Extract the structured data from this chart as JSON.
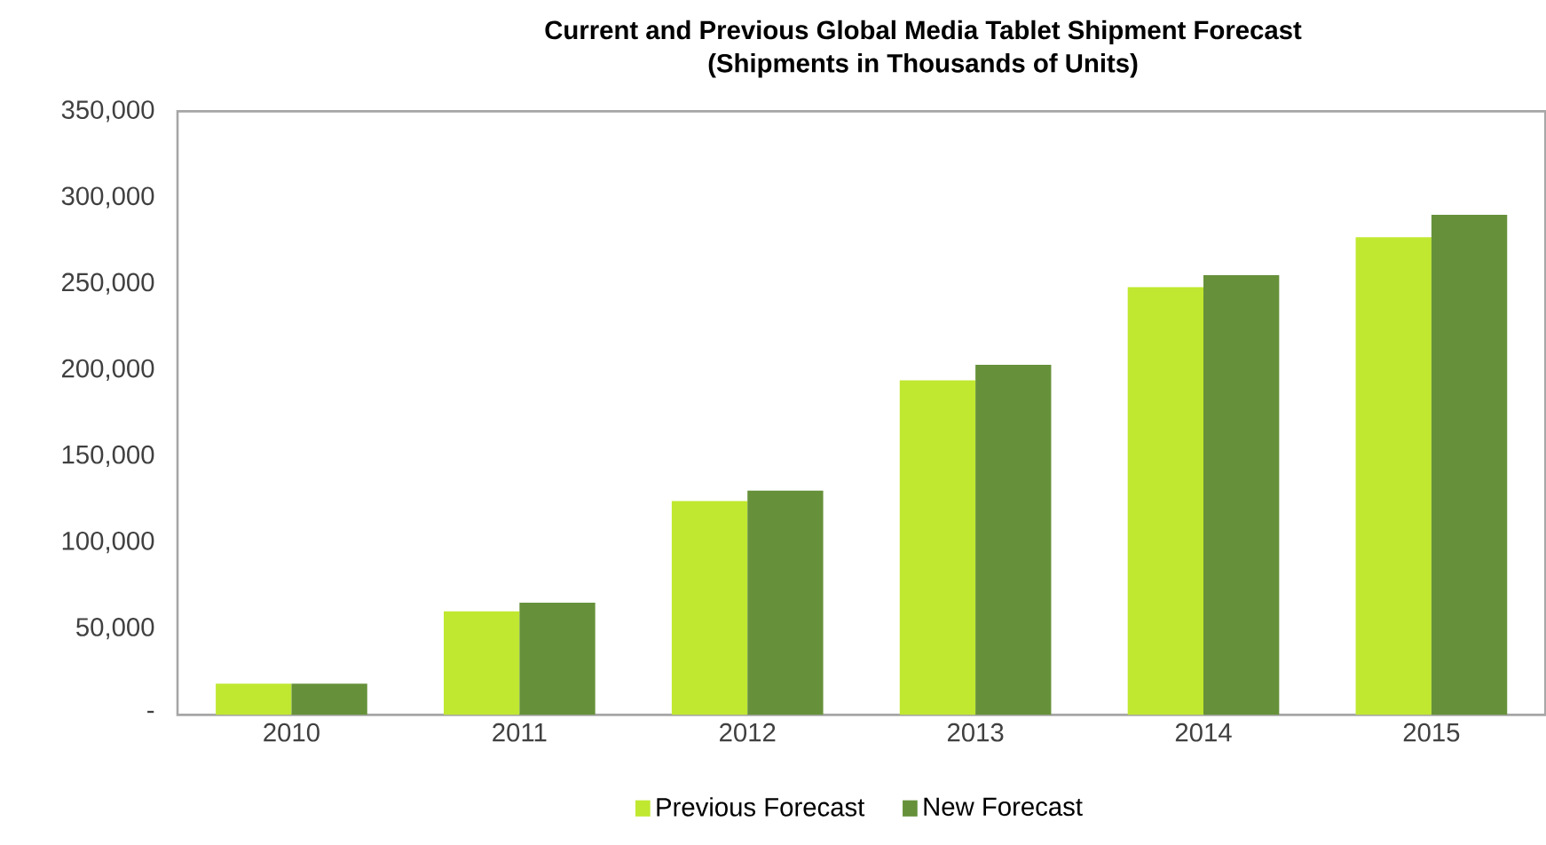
{
  "chart_data": {
    "type": "bar",
    "title": "Current and Previous Global Media Tablet Shipment Forecast",
    "subtitle": "(Shipments in Thousands of Units)",
    "categories": [
      "2010",
      "2011",
      "2012",
      "2013",
      "2014",
      "2015"
    ],
    "series": [
      {
        "name": "Previous Forecast",
        "color": "#c0e830",
        "values": [
          18000,
          60000,
          124000,
          194000,
          248000,
          277000
        ]
      },
      {
        "name": "New Forecast",
        "color": "#66913a",
        "values": [
          18000,
          65000,
          130000,
          203000,
          255000,
          290000
        ]
      }
    ],
    "ylim": [
      0,
      350000
    ],
    "yticks": [
      {
        "value": 0,
        "label": "-"
      },
      {
        "value": 50000,
        "label": "50,000"
      },
      {
        "value": 100000,
        "label": "100,000"
      },
      {
        "value": 150000,
        "label": "150,000"
      },
      {
        "value": 200000,
        "label": "200,000"
      },
      {
        "value": 250000,
        "label": "250,000"
      },
      {
        "value": 300000,
        "label": "300,000"
      },
      {
        "value": 350000,
        "label": "350,000"
      }
    ],
    "grid": false,
    "legend": "bottom"
  }
}
